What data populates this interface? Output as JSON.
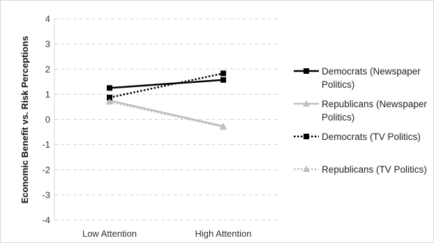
{
  "chart_data": {
    "type": "line",
    "categories": [
      "Low Attention",
      "High Attention"
    ],
    "ylabel": "Economic Benefit vs. Risk Perceptions",
    "xlabel": "",
    "ylim": [
      -4,
      4
    ],
    "yticks": [
      "-4",
      "-3",
      "-2",
      "-1",
      "0",
      "1",
      "2",
      "3",
      "4"
    ],
    "grid": "horizontal dashed",
    "legend_position": "right",
    "series": [
      {
        "name": "Democrats (Newspaper Politics)",
        "name_lines": [
          "Democrats (Newspaper",
          "Politics)"
        ],
        "values": [
          1.25,
          1.57
        ],
        "color": "#000000",
        "line": "solid",
        "marker": "square"
      },
      {
        "name": "Republicans (Newspaper Politics)",
        "name_lines": [
          "Republicans (Newspaper",
          "Politics)"
        ],
        "values": [
          0.75,
          -0.27
        ],
        "color": "#bfbfbf",
        "line": "solid",
        "marker": "triangle"
      },
      {
        "name": "Democrats (TV Politics)",
        "name_lines": [
          "Democrats (TV Politics)"
        ],
        "values": [
          0.87,
          1.83
        ],
        "color": "#000000",
        "line": "dotted",
        "marker": "square"
      },
      {
        "name": "Republicans (TV Politics)",
        "name_lines": [
          "Republicans (TV Politics)"
        ],
        "values": [
          0.7,
          -0.3
        ],
        "color": "#bfbfbf",
        "line": "dotted",
        "marker": "triangle"
      }
    ]
  }
}
